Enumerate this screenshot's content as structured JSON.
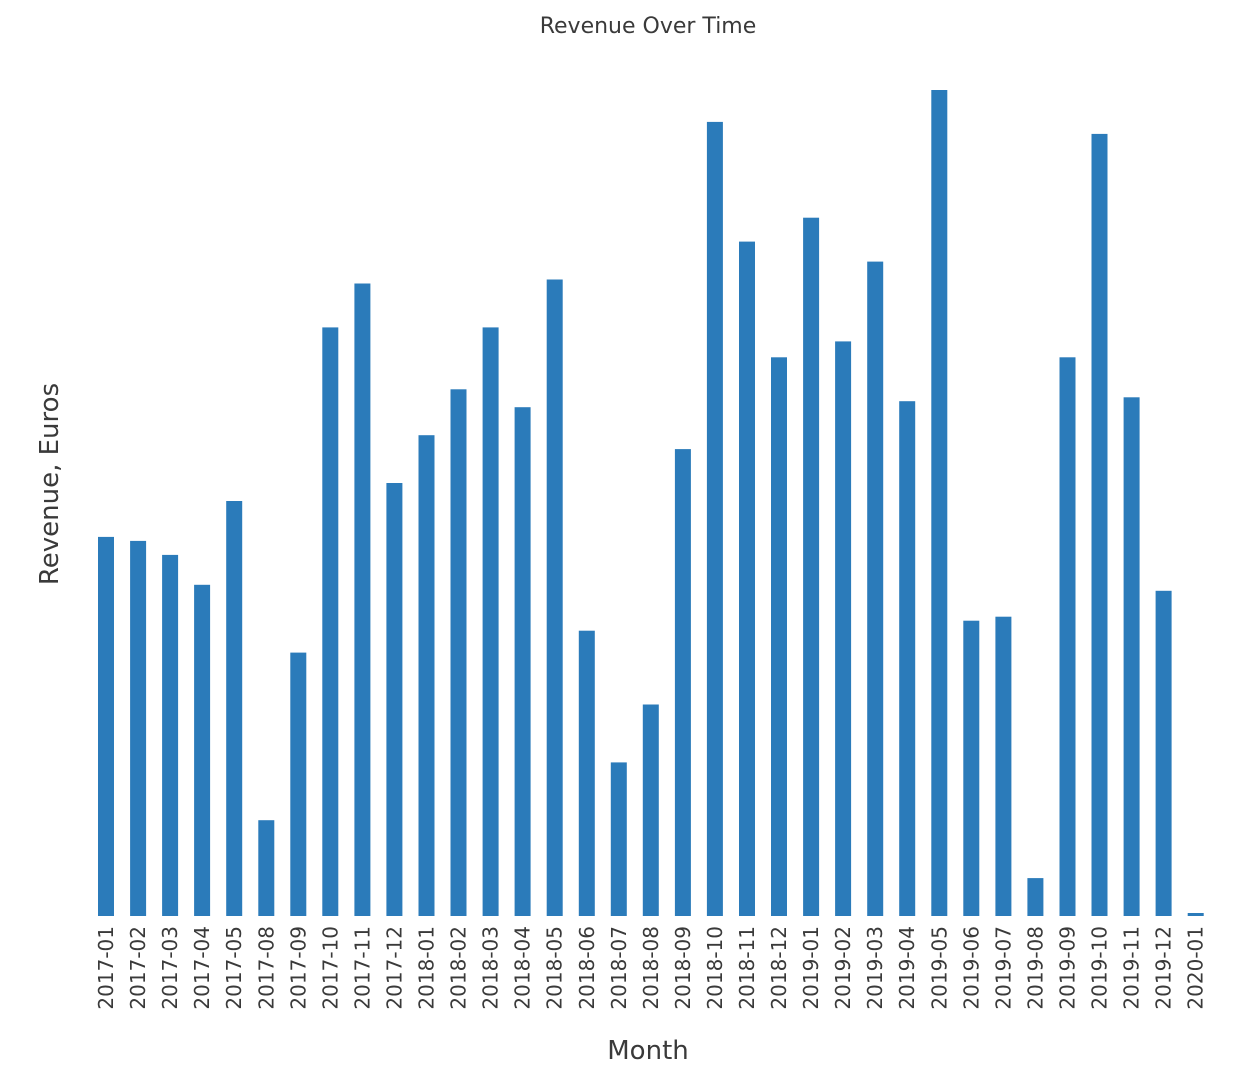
{
  "chart_data": {
    "type": "bar",
    "title": "Revenue Over Time",
    "xlabel": "Month",
    "ylabel": "Revenue, Euros",
    "categories": [
      "2017-01",
      "2017-02",
      "2017-03",
      "2017-04",
      "2017-05",
      "2017-08",
      "2017-09",
      "2017-10",
      "2017-11",
      "2017-12",
      "2018-01",
      "2018-02",
      "2018-03",
      "2018-04",
      "2018-05",
      "2018-06",
      "2018-07",
      "2018-08",
      "2018-09",
      "2018-10",
      "2018-11",
      "2018-12",
      "2019-01",
      "2019-02",
      "2019-03",
      "2019-04",
      "2019-05",
      "2019-06",
      "2019-07",
      "2019-08",
      "2019-09",
      "2019-10",
      "2019-11",
      "2019-12",
      "2020-01"
    ],
    "values": [
      380,
      376,
      362,
      332,
      416,
      96,
      264,
      590,
      634,
      434,
      482,
      528,
      590,
      510,
      638,
      286,
      154,
      212,
      468,
      796,
      676,
      560,
      700,
      576,
      656,
      516,
      828,
      296,
      300,
      38,
      560,
      784,
      520,
      326,
      3
    ],
    "ylim": [
      0,
      830
    ],
    "bar_color": "#2b7bba",
    "grid": false,
    "y_ticks_shown": false
  }
}
